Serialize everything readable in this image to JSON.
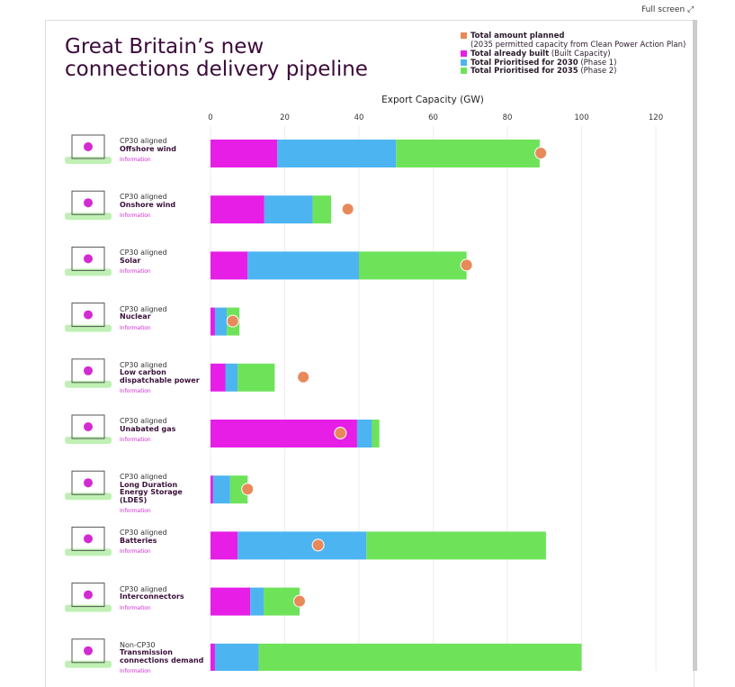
{
  "fullscreen_label": "Full screen",
  "chart_data": {
    "type": "bar",
    "orientation": "horizontal",
    "stacked": true,
    "title": "Great Britain’s new connections delivery pipeline",
    "x_label": "Export Capacity (GW)",
    "categories": [
      "Offshore wind",
      "Onshore wind",
      "Solar",
      "Nuclear",
      "Low carbon dispatchable power",
      "Unabated gas",
      "Long Duration Energy Storage (LDES)",
      "Batteries",
      "Interconnectors",
      "Transmission connections demand"
    ],
    "category_status": [
      "CP30 aligned",
      "CP30 aligned",
      "CP30 aligned",
      "CP30 aligned",
      "CP30 aligned",
      "CP30 aligned",
      "CP30 aligned",
      "CP30 aligned",
      "CP30 aligned",
      "Non-CP30"
    ],
    "info_label": "Information",
    "series": [
      {
        "name": "Total already built",
        "note": "(Built Capacity)",
        "color": "#e61ee6",
        "values": [
          18,
          14.5,
          10,
          1.2,
          4,
          39.5,
          0.7,
          7.3,
          10.7,
          1.2
        ]
      },
      {
        "name": "Total Prioritised for 2030",
        "note": "(Phase 1)",
        "color": "#4db4f2",
        "values": [
          32,
          13,
          30,
          3.2,
          3.3,
          4,
          4.6,
          34.7,
          3.6,
          11.8
        ]
      },
      {
        "name": "Total Prioritised for 2035",
        "note": "(Phase 2)",
        "color": "#6ee35a",
        "values": [
          38.7,
          5,
          29,
          3.4,
          10,
          2,
          4.7,
          48.4,
          9.7,
          87
        ]
      }
    ],
    "planned": {
      "name": "Total amount planned",
      "note": "(2035 permitted capacity from Clean Power Action Plan)",
      "color": "#e8895a",
      "values": [
        89,
        37,
        69,
        6,
        25,
        35,
        10,
        29,
        24,
        null
      ]
    },
    "xlim": [
      0,
      120
    ],
    "xticks": [
      0,
      20,
      40,
      60,
      80,
      100,
      120
    ],
    "grid": true
  }
}
